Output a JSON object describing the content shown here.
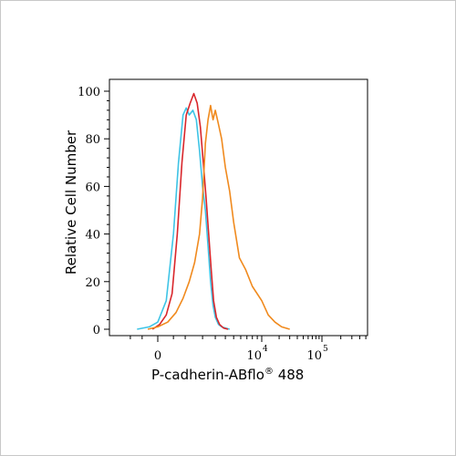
{
  "chart_data": {
    "type": "line",
    "title": "",
    "ylabel": "Relative Cell Number",
    "xlabel_main": "P-cadherin-ABflo",
    "xlabel_reg": "®",
    "xlabel_tail": " 488",
    "ylim": [
      0,
      100
    ],
    "yticks": [
      0,
      20,
      40,
      60,
      80,
      100
    ],
    "xscale": "biexponential",
    "xticks": [
      {
        "base": "0",
        "exp": "",
        "value": 0
      },
      {
        "base": "10",
        "exp": "4",
        "value": 10000
      },
      {
        "base": "10",
        "exp": "5",
        "value": 100000
      }
    ],
    "xlim": [
      -1500,
      1000000
    ],
    "grid": false,
    "legend": "none",
    "series": [
      {
        "color": "#3ec4e6",
        "x": [
          -700,
          -250,
          0,
          250,
          500,
          700,
          900,
          1050,
          1200,
          1400,
          1600,
          1800,
          2000,
          2200,
          2400,
          2600,
          2800,
          3000,
          3300,
          3600,
          4000,
          4500
        ],
        "y": [
          0,
          1,
          3,
          12,
          40,
          70,
          90,
          93,
          90,
          92,
          88,
          75,
          60,
          50,
          35,
          20,
          10,
          5,
          2,
          1,
          0.5,
          0
        ]
      },
      {
        "color": "#d9262b",
        "x": [
          -150,
          50,
          250,
          450,
          650,
          850,
          1050,
          1250,
          1450,
          1650,
          1850,
          2050,
          2250,
          2450,
          2650,
          2850,
          3100,
          3400,
          3800,
          4300
        ],
        "y": [
          0,
          2,
          6,
          15,
          40,
          70,
          90,
          95,
          99,
          95,
          85,
          70,
          55,
          40,
          25,
          12,
          5,
          2,
          0.5,
          0
        ]
      },
      {
        "color": "#f08a1e",
        "x": [
          -300,
          0,
          300,
          600,
          900,
          1200,
          1500,
          1800,
          2000,
          2200,
          2400,
          2600,
          2800,
          3000,
          3300,
          3600,
          4000,
          4500,
          5000,
          5800,
          6800,
          8000,
          10000,
          13000,
          17000,
          22000,
          30000
        ],
        "y": [
          0,
          1,
          3,
          7,
          13,
          20,
          28,
          40,
          55,
          78,
          88,
          94,
          88,
          92,
          86,
          80,
          68,
          58,
          45,
          30,
          25,
          18,
          12,
          6,
          3,
          1,
          0
        ]
      }
    ]
  }
}
